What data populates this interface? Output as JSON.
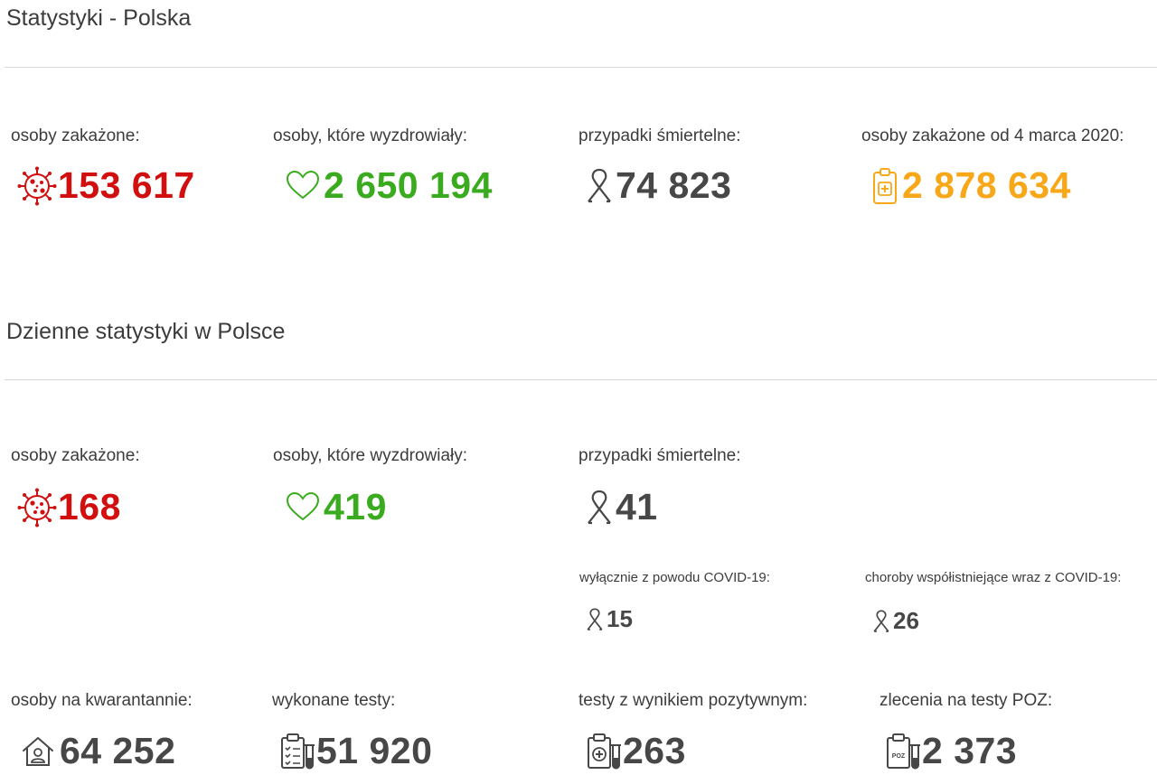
{
  "total": {
    "title": "Statystyki - Polska",
    "infected": {
      "label": "osoby zakażone:",
      "value": "153 617"
    },
    "recovered": {
      "label": "osoby, które wyzdrowiały:",
      "value": "2 650 194"
    },
    "deaths": {
      "label": "przypadki śmiertelne:",
      "value": "74 823"
    },
    "since": {
      "label": "osoby zakażone od 4 marca 2020:",
      "value": "2 878 634"
    }
  },
  "daily": {
    "title": "Dzienne statystyki w Polsce",
    "infected": {
      "label": "osoby zakażone:",
      "value": "168"
    },
    "recovered": {
      "label": "osoby, które wyzdrowiały:",
      "value": "419"
    },
    "deaths": {
      "label": "przypadki śmiertelne:",
      "value": "41"
    },
    "covid_only": {
      "label": "wyłącznie z powodu COVID-19:",
      "value": "15"
    },
    "comorbid": {
      "label": "choroby współistniejące wraz z COVID-19:",
      "value": "26"
    },
    "quarantine": {
      "label": "osoby na kwarantannie:",
      "value": "64 252"
    },
    "tests": {
      "label": "wykonane testy:",
      "value": "51 920"
    },
    "positive": {
      "label": "testy z wynikiem pozytywnym:",
      "value": "263"
    },
    "poz": {
      "label": "zlecenia na testy POZ:",
      "value": "2 373"
    }
  },
  "icons": {
    "infected": "virus-icon",
    "recovered": "heart-icon",
    "deaths": "ribbon-icon",
    "since": "clipboard-medical-icon",
    "quarantine": "house-person-icon",
    "tests": "test-checklist-icon",
    "positive": "test-positive-icon",
    "poz": "test-poz-icon",
    "poz_badge": "POZ"
  },
  "colors": {
    "red": "#d10f0f",
    "green": "#3aab1e",
    "gray": "#474747",
    "orange": "#f7a718"
  }
}
